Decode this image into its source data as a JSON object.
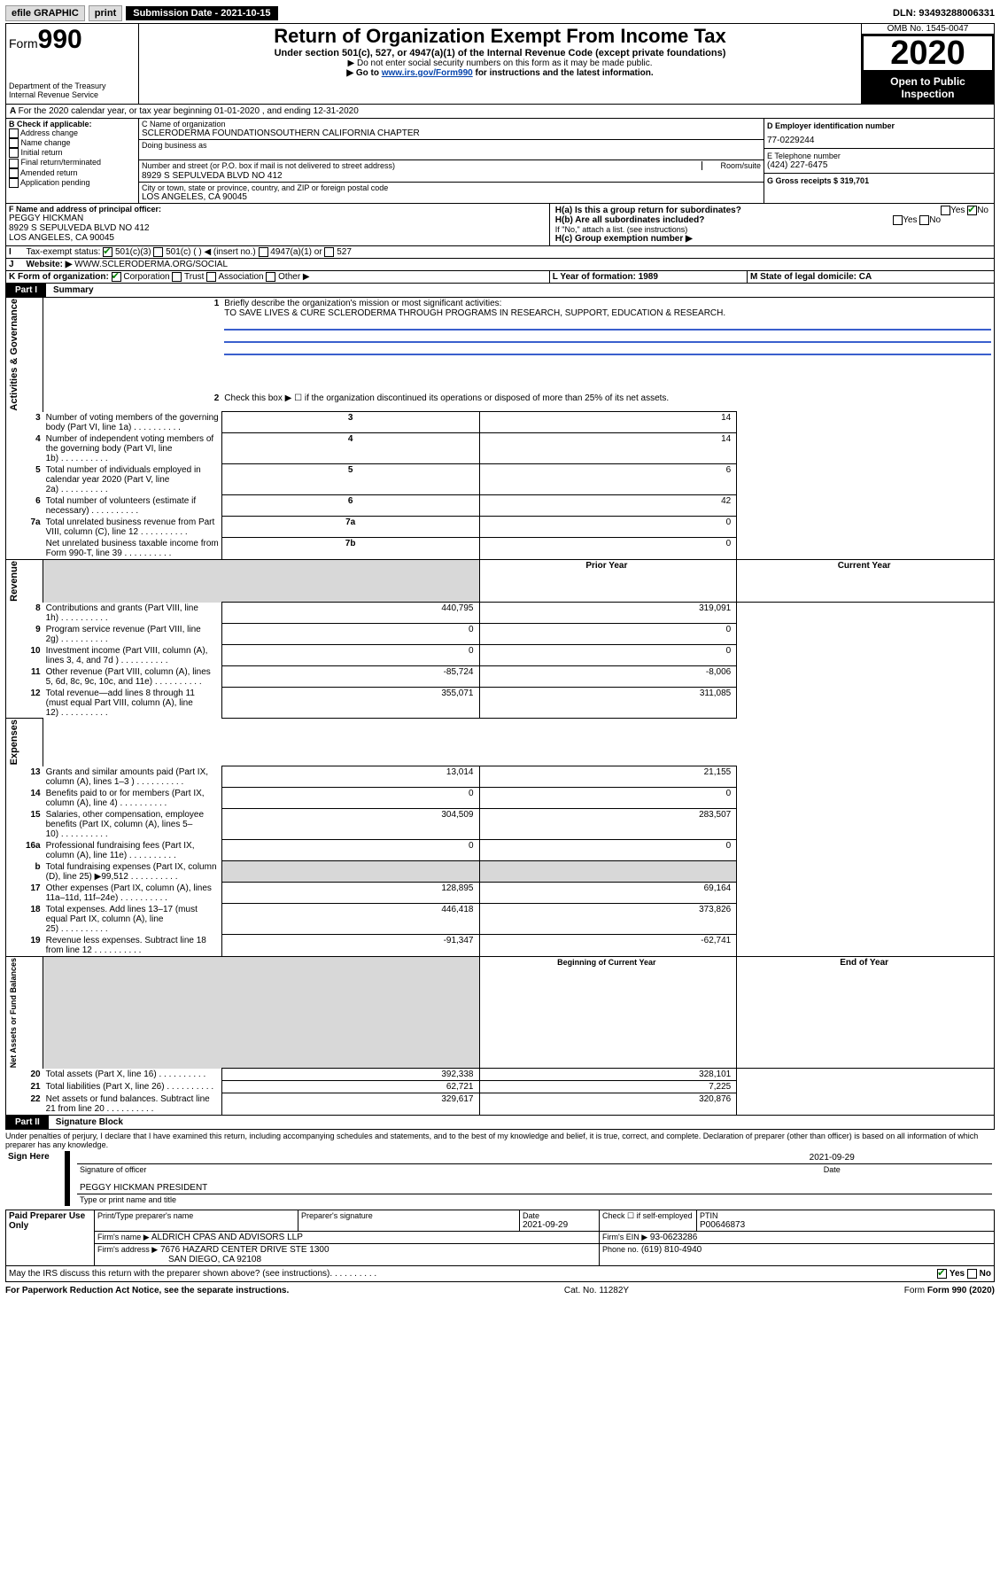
{
  "topbar": {
    "efile": "efile GRAPHIC",
    "print": "print",
    "sub_label": "Submission Date - 2021-10-15",
    "dln": "DLN: 93493288006331"
  },
  "header": {
    "form_prefix": "Form",
    "form_number": "990",
    "title": "Return of Organization Exempt From Income Tax",
    "subtitle": "Under section 501(c), 527, or 4947(a)(1) of the Internal Revenue Code (except private foundations)",
    "sub2": "▶ Do not enter social security numbers on this form as it may be made public.",
    "sub3_pre": "▶ Go to ",
    "sub3_link": "www.irs.gov/Form990",
    "sub3_post": " for instructions and the latest information.",
    "dept": "Department of the Treasury",
    "irs": "Internal Revenue Service",
    "omb": "OMB No. 1545-0047",
    "year": "2020",
    "open": "Open to Public Inspection"
  },
  "lineA": {
    "text": "For the 2020 calendar year, or tax year beginning 01-01-2020    , and ending 12-31-2020"
  },
  "boxB": {
    "label": "B Check if applicable:",
    "items": [
      "Address change",
      "Name change",
      "Initial return",
      "Final return/terminated",
      "Amended return",
      "Application pending"
    ]
  },
  "boxC": {
    "name_label": "C Name of organization",
    "name": "SCLERODERMA FOUNDATIONSOUTHERN CALIFORNIA CHAPTER",
    "dba_label": "Doing business as",
    "addr_label": "Number and street (or P.O. box if mail is not delivered to street address)",
    "room_label": "Room/suite",
    "addr": "8929 S SEPULVEDA BLVD NO 412",
    "city_label": "City or town, state or province, country, and ZIP or foreign postal code",
    "city": "LOS ANGELES, CA  90045"
  },
  "boxD": {
    "label": "D Employer identification number",
    "val": "77-0229244"
  },
  "boxE": {
    "label": "E Telephone number",
    "val": "(424) 227-6475"
  },
  "boxG": {
    "label": "G Gross receipts $ 319,701"
  },
  "boxF": {
    "label": "F  Name and address of principal officer:",
    "name": "PEGGY HICKMAN",
    "addr1": "8929 S SEPULVEDA BLVD NO 412",
    "addr2": "LOS ANGELES, CA  90045"
  },
  "boxH": {
    "ha": "H(a)  Is this a group return for subordinates?",
    "hb": "H(b)  Are all subordinates included?",
    "hb_note": "If \"No,\" attach a list. (see instructions)",
    "hc": "H(c)  Group exemption number ▶",
    "yes": "Yes",
    "no": "No"
  },
  "lineI": {
    "label": "Tax-exempt status:",
    "o1": "501(c)(3)",
    "o2": "501(c) (  ) ◀ (insert no.)",
    "o3": "4947(a)(1) or",
    "o4": "527"
  },
  "lineJ": {
    "label": "Website: ▶",
    "val": "WWW.SCLERODERMA.ORG/SOCIAL"
  },
  "lineK": {
    "label": "K Form of organization:",
    "corp": "Corporation",
    "trust": "Trust",
    "assoc": "Association",
    "other": "Other ▶"
  },
  "lineL": {
    "label": "L Year of formation: 1989"
  },
  "lineM": {
    "label": "M State of legal domicile: CA"
  },
  "part1": {
    "label": "Part I",
    "title": "Summary",
    "side_ag": "Activities & Governance",
    "side_rev": "Revenue",
    "side_exp": "Expenses",
    "side_net": "Net Assets or Fund Balances",
    "q1": "Briefly describe the organization's mission or most significant activities:",
    "q1_ans": "TO SAVE LIVES & CURE SCLERODERMA THROUGH PROGRAMS IN RESEARCH, SUPPORT, EDUCATION & RESEARCH.",
    "q2": "Check this box ▶ ☐  if the organization discontinued its operations or disposed of more than 25% of its net assets.",
    "rows_ag": [
      {
        "n": "3",
        "t": "Number of voting members of the governing body (Part VI, line 1a)",
        "c": "3",
        "v": "14"
      },
      {
        "n": "4",
        "t": "Number of independent voting members of the governing body (Part VI, line 1b)",
        "c": "4",
        "v": "14"
      },
      {
        "n": "5",
        "t": "Total number of individuals employed in calendar year 2020 (Part V, line 2a)",
        "c": "5",
        "v": "6"
      },
      {
        "n": "6",
        "t": "Total number of volunteers (estimate if necessary)",
        "c": "6",
        "v": "42"
      },
      {
        "n": "7a",
        "t": "Total unrelated business revenue from Part VIII, column (C), line 12",
        "c": "7a",
        "v": "0"
      },
      {
        "n": "",
        "t": "Net unrelated business taxable income from Form 990-T, line 39",
        "c": "7b",
        "v": "0"
      }
    ],
    "hdr_prior": "Prior Year",
    "hdr_curr": "Current Year",
    "rows_rev": [
      {
        "n": "8",
        "t": "Contributions and grants (Part VIII, line 1h)",
        "p": "440,795",
        "c": "319,091"
      },
      {
        "n": "9",
        "t": "Program service revenue (Part VIII, line 2g)",
        "p": "0",
        "c": "0"
      },
      {
        "n": "10",
        "t": "Investment income (Part VIII, column (A), lines 3, 4, and 7d )",
        "p": "0",
        "c": "0"
      },
      {
        "n": "11",
        "t": "Other revenue (Part VIII, column (A), lines 5, 6d, 8c, 9c, 10c, and 11e)",
        "p": "-85,724",
        "c": "-8,006"
      },
      {
        "n": "12",
        "t": "Total revenue—add lines 8 through 11 (must equal Part VIII, column (A), line 12)",
        "p": "355,071",
        "c": "311,085"
      }
    ],
    "rows_exp": [
      {
        "n": "13",
        "t": "Grants and similar amounts paid (Part IX, column (A), lines 1–3 )",
        "p": "13,014",
        "c": "21,155"
      },
      {
        "n": "14",
        "t": "Benefits paid to or for members (Part IX, column (A), line 4)",
        "p": "0",
        "c": "0"
      },
      {
        "n": "15",
        "t": "Salaries, other compensation, employee benefits (Part IX, column (A), lines 5–10)",
        "p": "304,509",
        "c": "283,507"
      },
      {
        "n": "16a",
        "t": "Professional fundraising fees (Part IX, column (A), line 11e)",
        "p": "0",
        "c": "0"
      },
      {
        "n": "b",
        "t": "Total fundraising expenses (Part IX, column (D), line 25) ▶99,512",
        "p": "",
        "c": "",
        "shade": true
      },
      {
        "n": "17",
        "t": "Other expenses (Part IX, column (A), lines 11a–11d, 11f–24e)",
        "p": "128,895",
        "c": "69,164"
      },
      {
        "n": "18",
        "t": "Total expenses. Add lines 13–17 (must equal Part IX, column (A), line 25)",
        "p": "446,418",
        "c": "373,826"
      },
      {
        "n": "19",
        "t": "Revenue less expenses. Subtract line 18 from line 12",
        "p": "-91,347",
        "c": "-62,741"
      }
    ],
    "hdr_boy": "Beginning of Current Year",
    "hdr_eoy": "End of Year",
    "rows_net": [
      {
        "n": "20",
        "t": "Total assets (Part X, line 16)",
        "p": "392,338",
        "c": "328,101"
      },
      {
        "n": "21",
        "t": "Total liabilities (Part X, line 26)",
        "p": "62,721",
        "c": "7,225"
      },
      {
        "n": "22",
        "t": "Net assets or fund balances. Subtract line 21 from line 20",
        "p": "329,617",
        "c": "320,876"
      }
    ]
  },
  "part2": {
    "label": "Part II",
    "title": "Signature Block",
    "decl": "Under penalties of perjury, I declare that I have examined this return, including accompanying schedules and statements, and to the best of my knowledge and belief, it is true, correct, and complete. Declaration of preparer (other than officer) is based on all information of which preparer has any knowledge.",
    "sign_here": "Sign Here",
    "sig_officer": "Signature of officer",
    "sig_date": "2021-09-29",
    "sig_date_lbl": "Date",
    "officer_name": "PEGGY HICKMAN  PRESIDENT",
    "officer_sub": "Type or print name and title",
    "paid": "Paid Preparer Use Only",
    "prep_name_lbl": "Print/Type preparer's name",
    "prep_sig_lbl": "Preparer's signature",
    "prep_date_lbl": "Date",
    "prep_date": "2021-09-29",
    "check_lbl": "Check ☐ if self-employed",
    "ptin_lbl": "PTIN",
    "ptin": "P00646873",
    "firm_name_lbl": "Firm's name    ▶",
    "firm_name": "ALDRICH CPAS AND ADVISORS LLP",
    "firm_ein_lbl": "Firm's EIN ▶",
    "firm_ein": "93-0623286",
    "firm_addr_lbl": "Firm's address ▶",
    "firm_addr1": "7676 HAZARD CENTER DRIVE STE 1300",
    "firm_addr2": "SAN DIEGO, CA  92108",
    "phone_lbl": "Phone no.",
    "phone": "(619) 810-4940",
    "discuss": "May the IRS discuss this return with the preparer shown above? (see instructions)",
    "yes": "Yes",
    "no": "No"
  },
  "footer": {
    "pra": "For Paperwork Reduction Act Notice, see the separate instructions.",
    "cat": "Cat. No. 11282Y",
    "form": "Form 990 (2020)"
  }
}
